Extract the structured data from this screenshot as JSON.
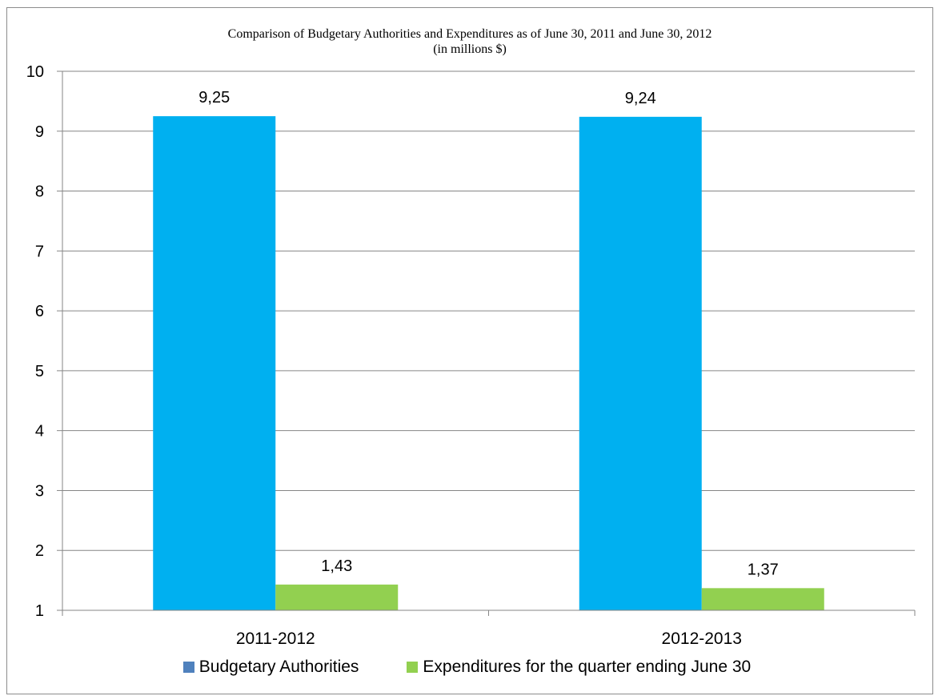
{
  "chart_data": {
    "type": "bar",
    "title_line1": "Comparison of Budgetary Authorities and Expenditures as of June 30, 2011 and June 30, 2012",
    "title_line2": "(in millions $)",
    "categories": [
      "2011-2012",
      "2012-2013"
    ],
    "series": [
      {
        "name": "Budgetary Authorities",
        "values": [
          9.25,
          9.24
        ],
        "labels": [
          "9,25",
          "9,24"
        ],
        "bar_color": "#00b0f0",
        "legend_color": "#4f81bd"
      },
      {
        "name": "Expenditures for the quarter ending June 30",
        "values": [
          1.43,
          1.37
        ],
        "labels": [
          "1,43",
          "1,37"
        ],
        "bar_color": "#92d050",
        "legend_color": "#92d050"
      }
    ],
    "ylim": [
      1,
      10
    ],
    "yticks": [
      "1",
      "2",
      "3",
      "4",
      "5",
      "6",
      "7",
      "8",
      "9",
      "10"
    ],
    "grid": true,
    "legend_position": "bottom",
    "xlabel": "",
    "ylabel": ""
  }
}
